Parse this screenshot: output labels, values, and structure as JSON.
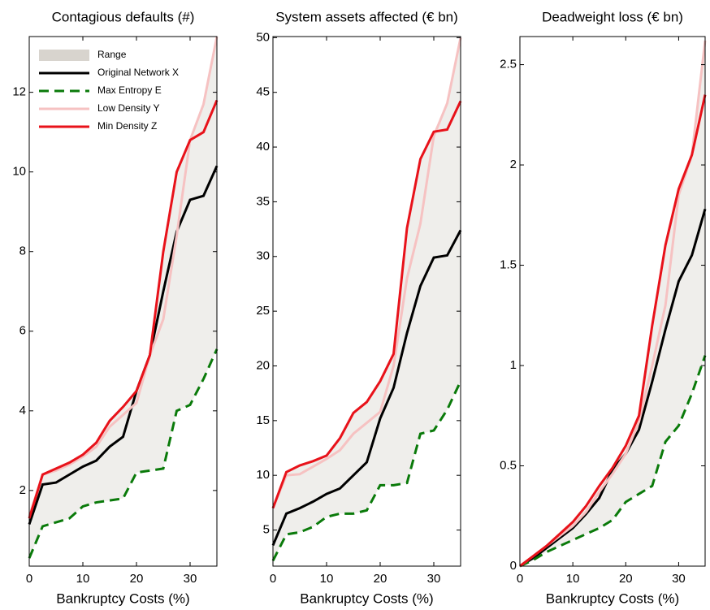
{
  "chart_data": [
    {
      "type": "line",
      "title": "Contagious defaults (#)",
      "x_label": "Bankruptcy Costs (%)",
      "x": [
        0,
        2.5,
        5,
        7.5,
        10,
        12.5,
        15,
        17.5,
        20,
        22.5,
        25,
        27.5,
        30,
        32.5,
        35
      ],
      "xlim": [
        0,
        35
      ],
      "xticks": [
        0,
        10,
        20,
        30
      ],
      "ylim": [
        0.1,
        13.4
      ],
      "yticks": [
        2,
        4,
        6,
        8,
        10,
        12
      ],
      "legend": "upper left",
      "range": {
        "name": "Range",
        "color": "#d8d4ce"
      },
      "series": [
        {
          "name": "Original Network X",
          "color": "#000000",
          "dash": false,
          "values": [
            1.15,
            2.15,
            2.2,
            2.4,
            2.6,
            2.75,
            3.1,
            3.35,
            4.5,
            5.4,
            7.0,
            8.5,
            9.3,
            9.4,
            10.15
          ]
        },
        {
          "name": "Max Entropy E",
          "color": "#0a7a0a",
          "dash": true,
          "values": [
            0.3,
            1.1,
            1.2,
            1.3,
            1.6,
            1.7,
            1.75,
            1.8,
            2.45,
            2.5,
            2.55,
            4.0,
            4.15,
            4.8,
            5.55
          ]
        },
        {
          "name": "Low Density Y",
          "color": "#f6c2c2",
          "dash": false,
          "values": [
            1.35,
            2.4,
            2.5,
            2.65,
            2.85,
            3.1,
            3.6,
            3.9,
            4.2,
            5.4,
            6.3,
            8.4,
            10.8,
            11.7,
            13.4
          ]
        },
        {
          "name": "Min Density Z",
          "color": "#e8121a",
          "dash": false,
          "values": [
            1.3,
            2.4,
            2.55,
            2.7,
            2.9,
            3.2,
            3.75,
            4.1,
            4.5,
            5.4,
            8.0,
            10.0,
            10.8,
            11.0,
            11.8
          ]
        }
      ]
    },
    {
      "type": "line",
      "title": "System assets affected (€ bn)",
      "x_label": "Bankruptcy Costs (%)",
      "x": [
        0,
        2.5,
        5,
        7.5,
        10,
        12.5,
        15,
        17.5,
        20,
        22.5,
        25,
        27.5,
        30,
        32.5,
        35
      ],
      "xlim": [
        0,
        35
      ],
      "xticks": [
        0,
        10,
        20,
        30
      ],
      "ylim": [
        1.7,
        50.1
      ],
      "yticks": [
        5,
        10,
        15,
        20,
        25,
        30,
        35,
        40,
        45,
        50
      ],
      "range": {
        "color": "#d8d4ce"
      },
      "series": [
        {
          "color": "#000000",
          "dash": false,
          "values": [
            3.6,
            6.5,
            7.0,
            7.6,
            8.3,
            8.8,
            10.0,
            11.2,
            15.2,
            18.0,
            23.0,
            27.3,
            29.9,
            30.1,
            32.4
          ]
        },
        {
          "color": "#0a7a0a",
          "dash": true,
          "values": [
            2.2,
            4.6,
            4.8,
            5.3,
            6.2,
            6.5,
            6.5,
            6.8,
            9.1,
            9.1,
            9.3,
            13.8,
            14.1,
            16.0,
            18.6
          ]
        },
        {
          "color": "#f6c2c2",
          "dash": false,
          "values": [
            7.0,
            10.0,
            10.1,
            10.8,
            11.5,
            12.3,
            13.8,
            14.8,
            15.8,
            20.0,
            28.0,
            33.0,
            41.0,
            44.0,
            50.0
          ]
        },
        {
          "color": "#e8121a",
          "dash": false,
          "values": [
            7.0,
            10.3,
            10.9,
            11.3,
            11.8,
            13.4,
            15.7,
            16.7,
            18.6,
            21.1,
            32.6,
            38.9,
            41.4,
            41.6,
            44.2
          ]
        }
      ]
    },
    {
      "type": "line",
      "title": "Deadweight loss (€ bn)",
      "x_label": "Bankruptcy Costs (%)",
      "x": [
        0,
        2.5,
        5,
        7.5,
        10,
        12.5,
        15,
        17.5,
        20,
        22.5,
        25,
        27.5,
        30,
        32.5,
        35
      ],
      "xlim": [
        0,
        35
      ],
      "xticks": [
        0,
        10,
        20,
        30
      ],
      "ylim": [
        0,
        2.64
      ],
      "yticks": [
        0,
        0.5,
        1,
        1.5,
        2,
        2.5
      ],
      "range": {
        "color": "#d8d4ce"
      },
      "series": [
        {
          "color": "#000000",
          "dash": false,
          "values": [
            0,
            0.04,
            0.09,
            0.14,
            0.19,
            0.26,
            0.34,
            0.48,
            0.56,
            0.68,
            0.92,
            1.18,
            1.42,
            1.55,
            1.78
          ]
        },
        {
          "color": "#0a7a0a",
          "dash": true,
          "values": [
            0,
            0.03,
            0.07,
            0.1,
            0.13,
            0.16,
            0.19,
            0.23,
            0.32,
            0.36,
            0.4,
            0.62,
            0.7,
            0.86,
            1.05
          ]
        },
        {
          "color": "#f6c2c2",
          "dash": false,
          "values": [
            0,
            0.05,
            0.1,
            0.15,
            0.2,
            0.27,
            0.37,
            0.46,
            0.56,
            0.72,
            1.0,
            1.3,
            1.85,
            2.05,
            2.62
          ]
        },
        {
          "color": "#e8121a",
          "dash": false,
          "values": [
            0,
            0.05,
            0.1,
            0.16,
            0.22,
            0.3,
            0.4,
            0.49,
            0.6,
            0.75,
            1.2,
            1.6,
            1.88,
            2.05,
            2.35
          ]
        }
      ]
    }
  ]
}
